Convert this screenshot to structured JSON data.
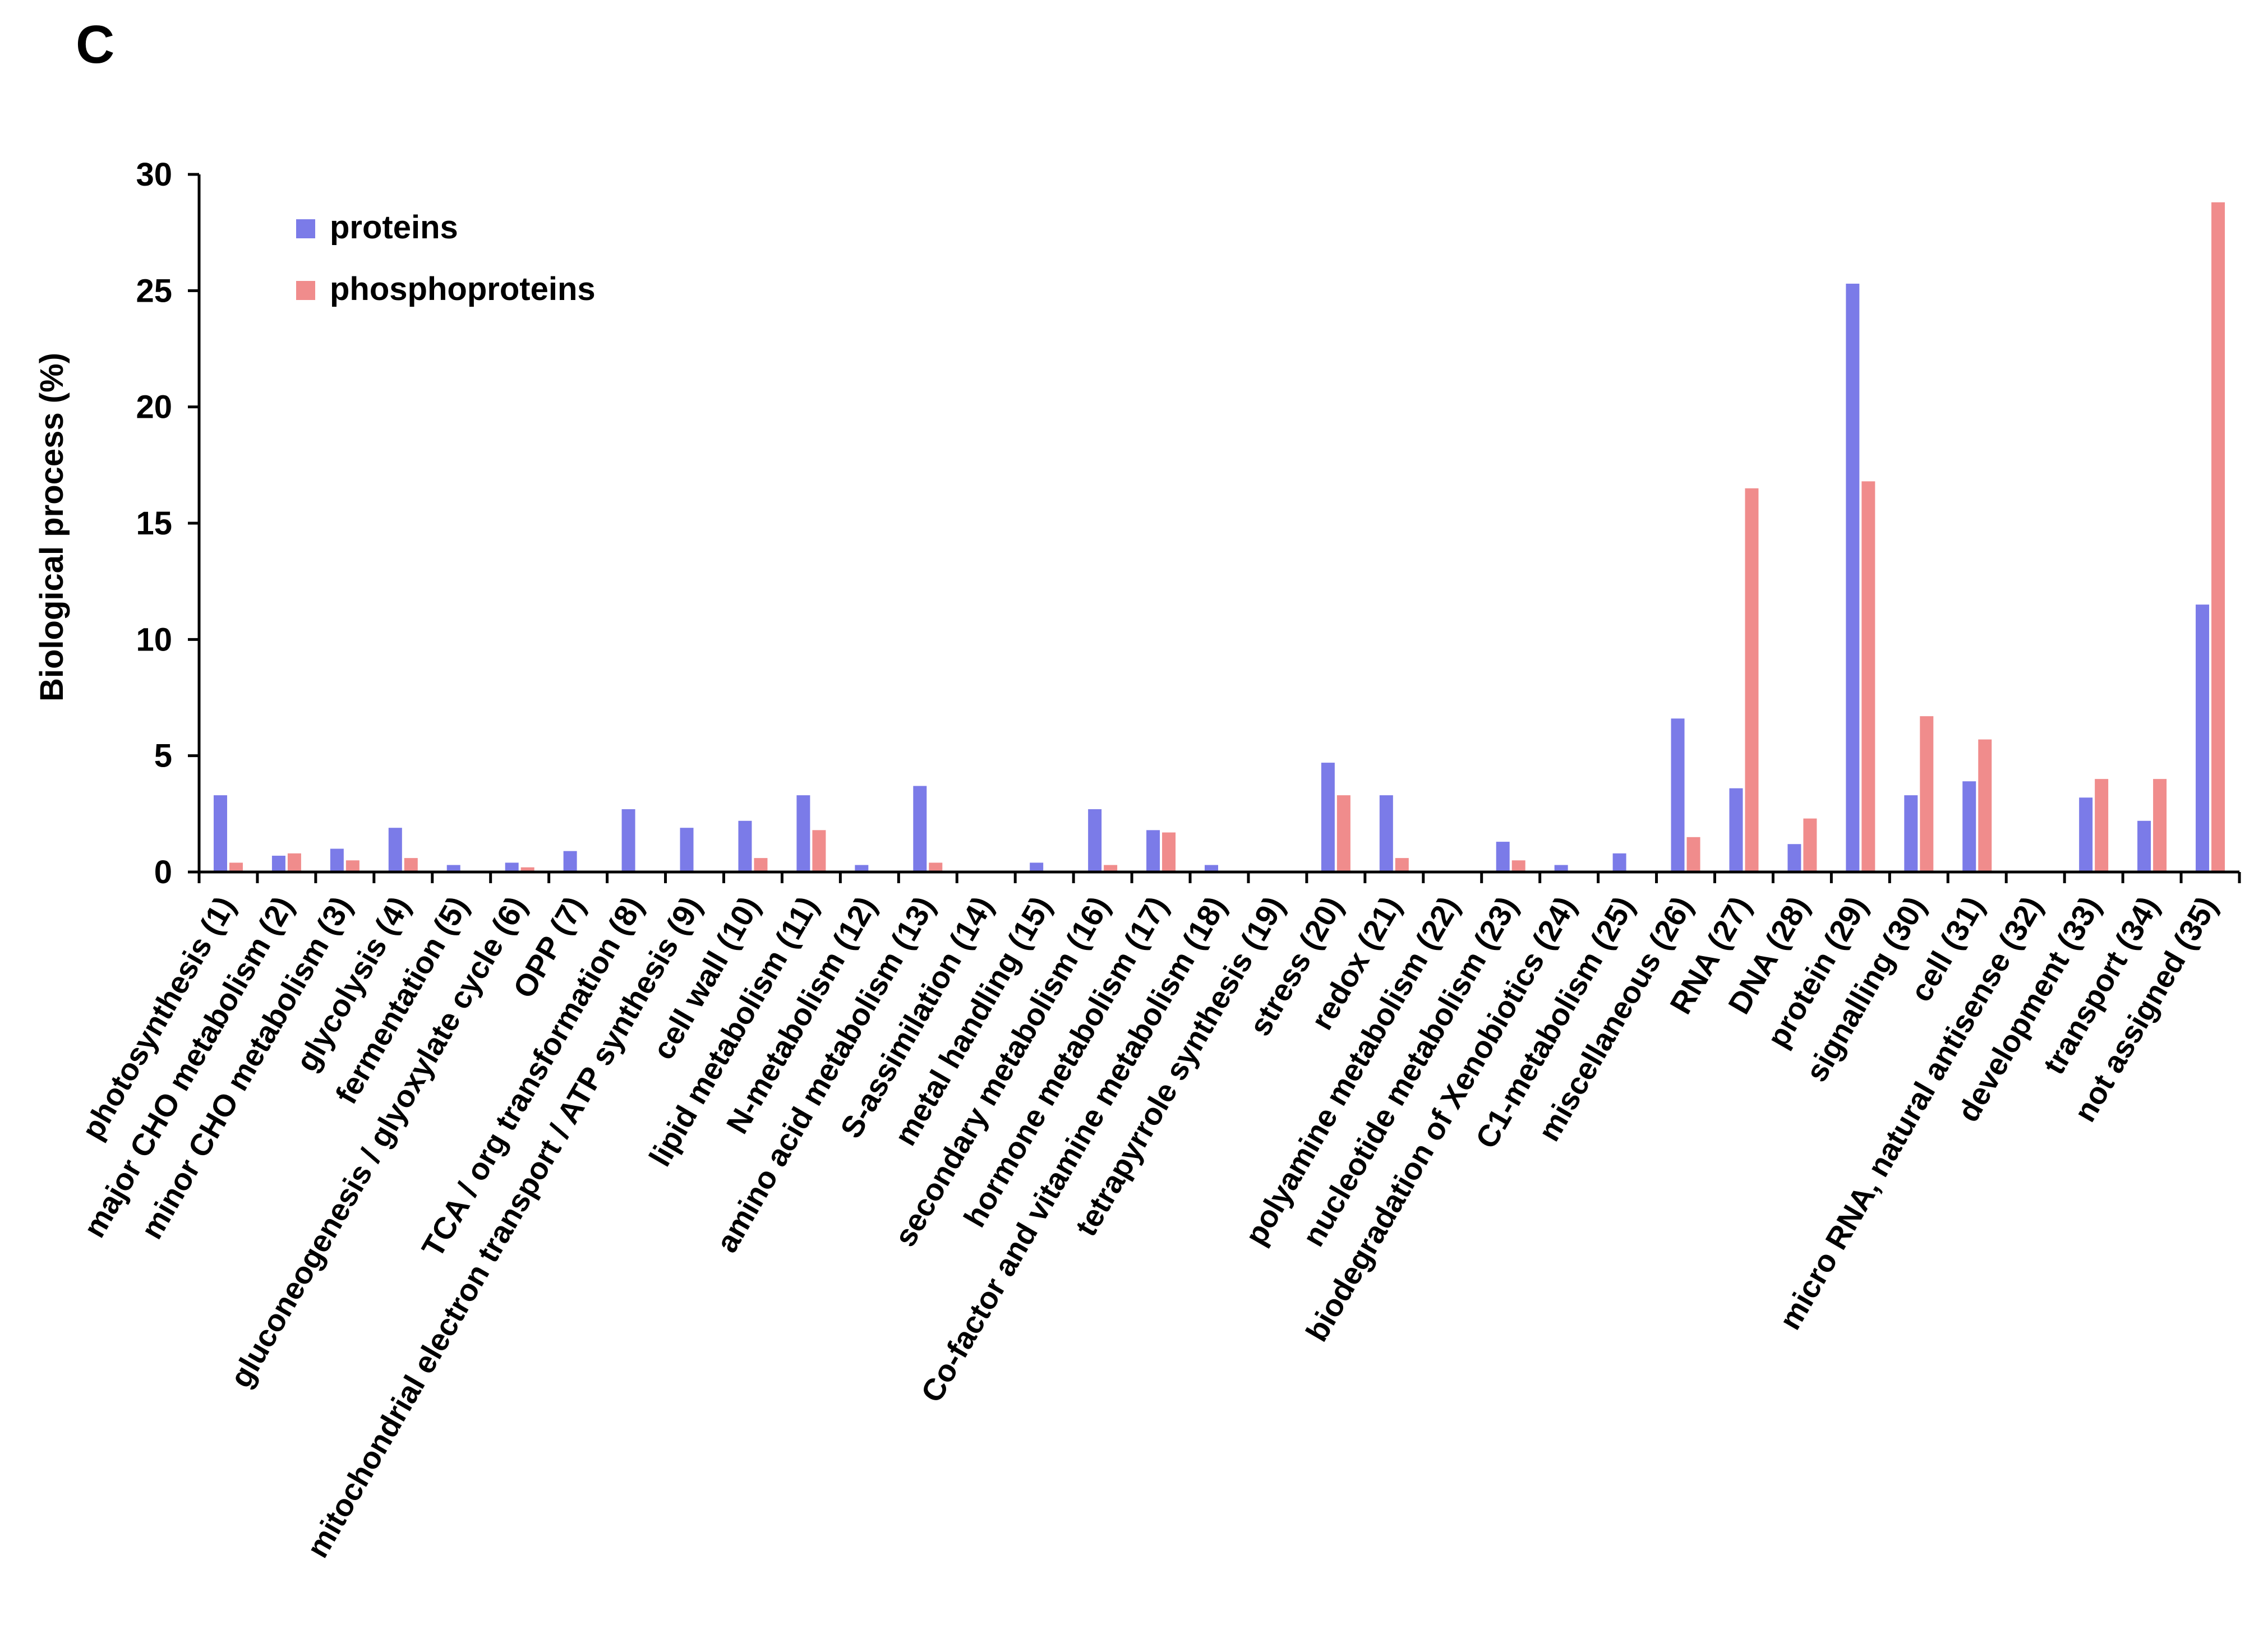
{
  "panel_label": "C",
  "chart_data": {
    "type": "bar",
    "title": "",
    "xlabel": "",
    "ylabel": "Biological process (%)",
    "ylim": [
      0,
      30
    ],
    "yticks": [
      0,
      5,
      10,
      15,
      20,
      25,
      30
    ],
    "grid": false,
    "legend_position": "top-left",
    "categories": [
      "photosynthesis (1)",
      "major CHO metabolism (2)",
      "minor CHO metabolism (3)",
      "glycolysis (4)",
      "fermentation (5)",
      "gluconeogenesis / glyoxylate cycle (6)",
      "OPP (7)",
      "TCA / org transformation (8)",
      "mitochondrial electron transport / ATP synthesis (9)",
      "cell wall (10)",
      "lipid metabolism (11)",
      "N-metabolism (12)",
      "amino acid metabolism (13)",
      "S-assimilation (14)",
      "metal handling (15)",
      "secondary metabolism (16)",
      "hormone metabolism (17)",
      "Co-factor and vitamine metabolism (18)",
      "tetrapyrrole synthesis (19)",
      "stress (20)",
      "redox (21)",
      "polyamine metabolism (22)",
      "nucleotide metabolism (23)",
      "biodegradation of Xenobiotics (24)",
      "C1-metabolism (25)",
      "miscellaneous (26)",
      "RNA (27)",
      "DNA (28)",
      "protein (29)",
      "signalling (30)",
      "cell (31)",
      "micro RNA, natural antisense (32)",
      "development (33)",
      "transport (34)",
      "not assigned (35)"
    ],
    "series": [
      {
        "name": "proteins",
        "color": "#7b7be8",
        "values": [
          3.3,
          0.7,
          1.0,
          1.9,
          0.3,
          0.4,
          0.9,
          2.7,
          1.9,
          2.2,
          3.3,
          0.3,
          3.7,
          0.0,
          0.4,
          2.7,
          1.8,
          0.3,
          0.0,
          4.7,
          3.3,
          0.0,
          1.3,
          0.3,
          0.8,
          6.6,
          3.6,
          1.2,
          25.3,
          3.3,
          3.9,
          0.0,
          3.2,
          2.2,
          11.5
        ]
      },
      {
        "name": "phosphoproteins",
        "color": "#f08c8c",
        "values": [
          0.4,
          0.8,
          0.5,
          0.6,
          0.0,
          0.2,
          0.0,
          0.0,
          0.0,
          0.6,
          1.8,
          0.0,
          0.4,
          0.0,
          0.0,
          0.3,
          1.7,
          0.0,
          0.0,
          3.3,
          0.6,
          0.0,
          0.5,
          0.0,
          0.0,
          1.5,
          16.5,
          2.3,
          16.8,
          6.7,
          5.7,
          0.0,
          4.0,
          4.0,
          28.8
        ]
      }
    ]
  }
}
